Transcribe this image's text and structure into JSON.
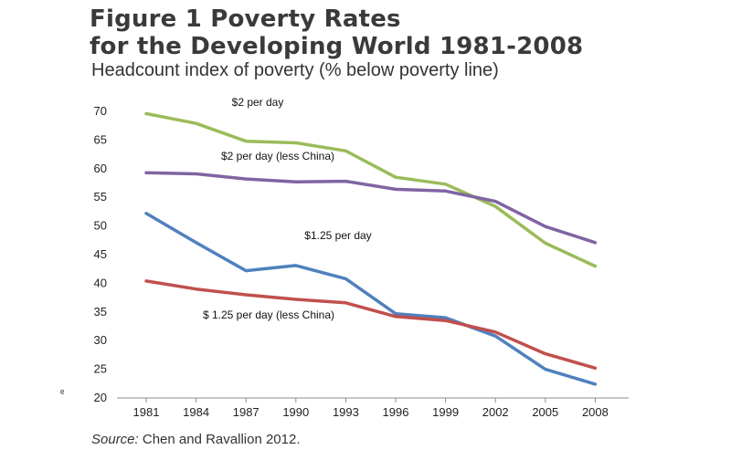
{
  "header": {
    "title_line1": "Figure 1 Poverty Rates",
    "title_line2": "for the Developing World 1981-2008",
    "subtitle": "Headcount index of poverty (% below poverty line)"
  },
  "footer": {
    "source_label": "Source:",
    "source_text": " Chen and Ravallion 2012."
  },
  "stray_mark": "ₑ",
  "chart_data": {
    "type": "line",
    "title": "Figure 1 Poverty Rates for the Developing World 1981-2008",
    "subtitle": "Headcount index of poverty (% below poverty line)",
    "xlabel": "",
    "ylabel": "",
    "ylim": [
      20,
      70
    ],
    "yticks": [
      20,
      25,
      30,
      35,
      40,
      45,
      50,
      55,
      60,
      65,
      70
    ],
    "categories": [
      "1981",
      "1984",
      "1987",
      "1990",
      "1993",
      "1996",
      "1999",
      "2002",
      "2005",
      "2008"
    ],
    "grid": false,
    "legend": "inline labels",
    "series": [
      {
        "name": "$2 per day",
        "color": "#9bbb59",
        "values": [
          69.6,
          67.9,
          64.8,
          64.5,
          63.1,
          58.5,
          57.3,
          53.4,
          47.0,
          43.0
        ]
      },
      {
        "name": "$2 per day (less China)",
        "color": "#8064a2",
        "values": [
          59.3,
          59.1,
          58.2,
          57.7,
          57.8,
          56.4,
          56.1,
          54.3,
          49.9,
          47.1
        ]
      },
      {
        "name": "$1.25 per day",
        "color": "#4f81bd",
        "values": [
          52.2,
          47.1,
          42.2,
          43.1,
          40.8,
          34.7,
          34.0,
          30.8,
          25.0,
          22.4
        ]
      },
      {
        "name": "$ 1.25 per day  (less China)",
        "color": "#c0504d",
        "values": [
          40.4,
          39.0,
          38.0,
          37.2,
          36.6,
          34.2,
          33.5,
          31.5,
          27.7,
          25.2
        ]
      }
    ]
  }
}
